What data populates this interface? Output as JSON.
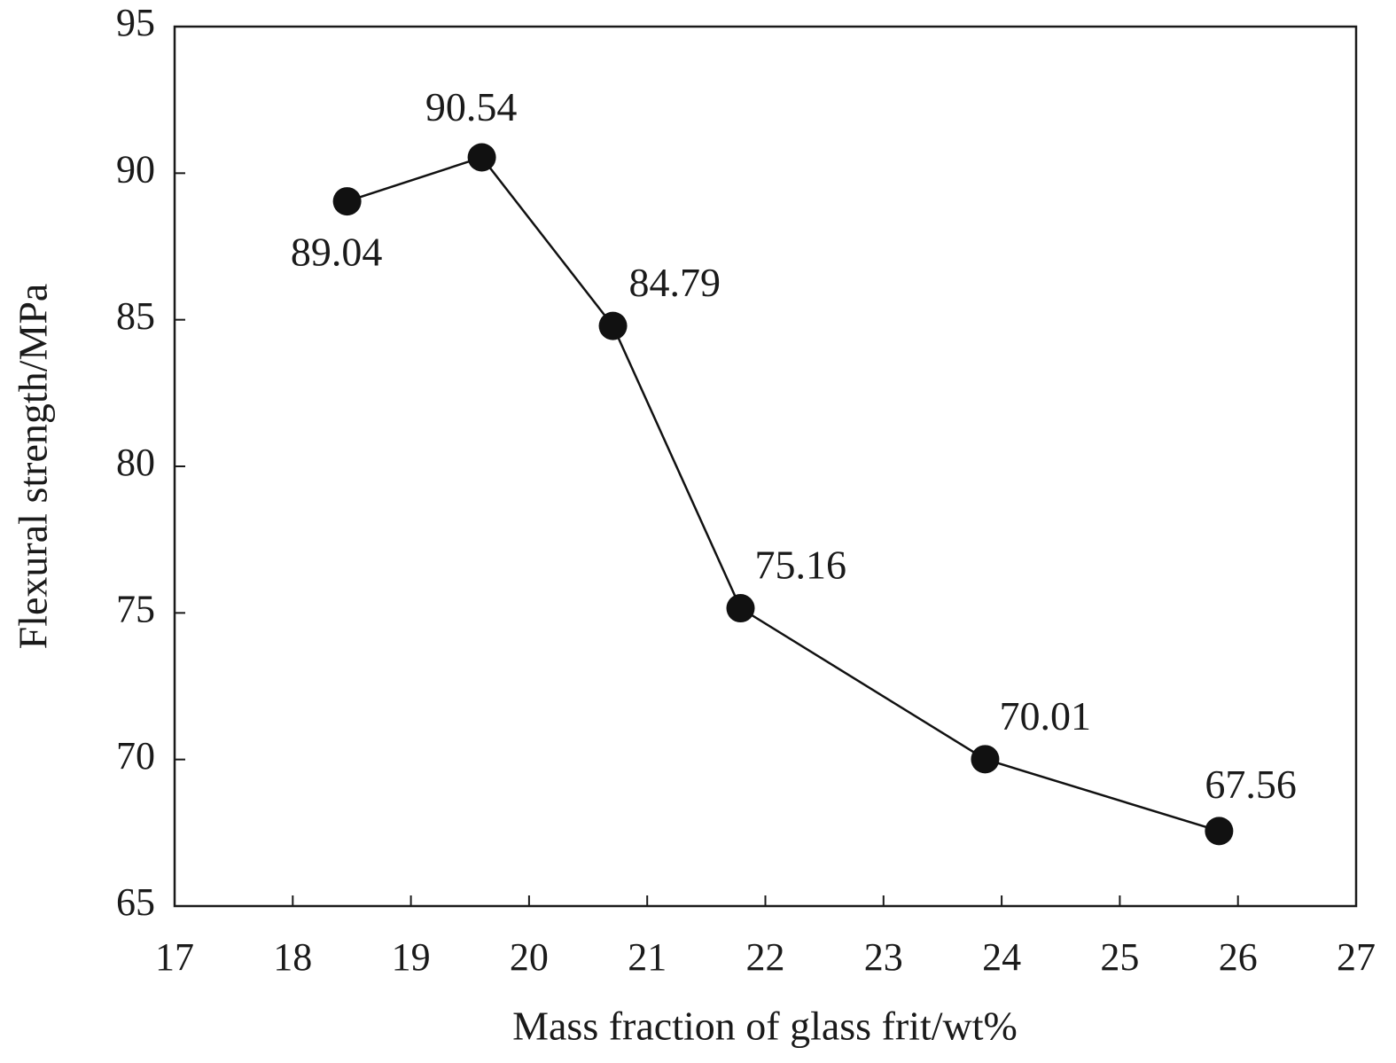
{
  "chart_data": {
    "type": "line",
    "x_label": "Mass fraction of glass frit/wt%",
    "y_label": "Flexural strength/MPa",
    "x": [
      18.46,
      19.6,
      20.71,
      21.79,
      23.86,
      25.84
    ],
    "values": [
      89.04,
      90.54,
      84.79,
      75.16,
      70.01,
      67.56
    ],
    "color": "#111111",
    "xlim": [
      17,
      27
    ],
    "xticks": [
      17,
      18,
      19,
      20,
      21,
      22,
      23,
      24,
      25,
      26,
      27
    ],
    "ylim": [
      65,
      95
    ],
    "yticks": [
      65,
      70,
      75,
      80,
      85,
      90,
      95
    ],
    "grid": false
  }
}
